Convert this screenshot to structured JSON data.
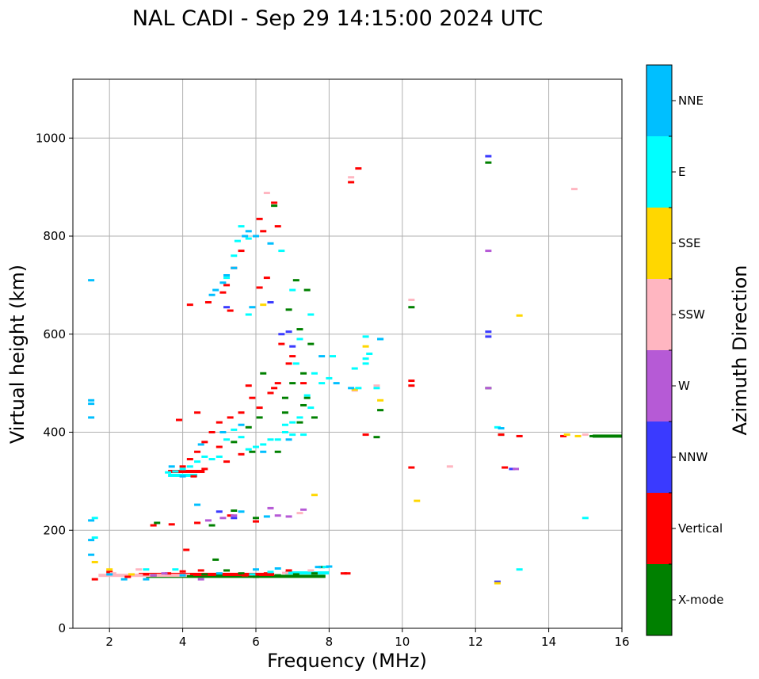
{
  "chart_data": {
    "type": "scatter",
    "title": "NAL CADI - Sep 29 14:15:00 2024 UTC",
    "xlabel": "Frequency (MHz)",
    "ylabel": "Virtual height (km)",
    "xlim": [
      1,
      16
    ],
    "ylim": [
      0,
      1120
    ],
    "xticks": [
      2,
      4,
      6,
      8,
      10,
      12,
      14,
      16
    ],
    "yticks": [
      0,
      200,
      400,
      600,
      800,
      1000
    ],
    "grid": true,
    "colorbar": {
      "label": "Azimuth Direction",
      "categories": [
        {
          "name": "X-mode",
          "color": "#008000"
        },
        {
          "name": "Vertical",
          "color": "#ff0000"
        },
        {
          "name": "NNW",
          "color": "#3a3aff"
        },
        {
          "name": "W",
          "color": "#b65ad6"
        },
        {
          "name": "SSW",
          "color": "#ffb6c1"
        },
        {
          "name": "SSE",
          "color": "#ffd700"
        },
        {
          "name": "E",
          "color": "#00ffff"
        },
        {
          "name": "NNE",
          "color": "#00bfff"
        }
      ]
    },
    "series": [
      {
        "name": "X-mode",
        "points": [
          [
            6.5,
            862
          ],
          [
            7.1,
            710
          ],
          [
            7.4,
            690
          ],
          [
            6.9,
            650
          ],
          [
            7.2,
            610
          ],
          [
            7.5,
            580
          ],
          [
            7.3,
            520
          ],
          [
            7.0,
            500
          ],
          [
            7.4,
            470
          ],
          [
            6.8,
            440
          ],
          [
            7.2,
            420
          ],
          [
            6.1,
            430
          ],
          [
            5.8,
            410
          ],
          [
            5.4,
            380
          ],
          [
            5.9,
            360
          ],
          [
            6.2,
            520
          ],
          [
            6.8,
            470
          ],
          [
            7.3,
            455
          ],
          [
            7.6,
            430
          ],
          [
            6.6,
            360
          ],
          [
            4.8,
            210
          ],
          [
            5.4,
            240
          ],
          [
            6.0,
            225
          ],
          [
            3.3,
            215
          ],
          [
            4.6,
            110
          ],
          [
            5.0,
            108
          ],
          [
            5.6,
            112
          ],
          [
            6.0,
            105
          ],
          [
            6.6,
            108
          ],
          [
            7.1,
            110
          ],
          [
            7.6,
            112
          ],
          [
            3.2,
            108
          ],
          [
            4.2,
            106
          ],
          [
            5.2,
            118
          ],
          [
            12.35,
            950
          ],
          [
            12.35,
            490
          ],
          [
            10.25,
            655
          ],
          [
            9.3,
            390
          ],
          [
            9.4,
            445
          ],
          [
            15.2,
            392
          ],
          [
            15.7,
            392
          ],
          [
            12.7,
            395
          ],
          [
            7.8,
            125
          ],
          [
            4.9,
            140
          ]
        ]
      },
      {
        "name": "Vertical",
        "points": [
          [
            6.5,
            868
          ],
          [
            6.6,
            820
          ],
          [
            6.1,
            835
          ],
          [
            6.2,
            810
          ],
          [
            5.6,
            770
          ],
          [
            5.4,
            735
          ],
          [
            5.2,
            700
          ],
          [
            5.1,
            685
          ],
          [
            5.3,
            648
          ],
          [
            6.3,
            715
          ],
          [
            6.1,
            695
          ],
          [
            6.7,
            580
          ],
          [
            6.9,
            540
          ],
          [
            6.6,
            500
          ],
          [
            6.4,
            480
          ],
          [
            5.8,
            495
          ],
          [
            5.9,
            470
          ],
          [
            6.1,
            450
          ],
          [
            5.6,
            440
          ],
          [
            5.3,
            430
          ],
          [
            5.0,
            420
          ],
          [
            4.8,
            400
          ],
          [
            4.6,
            380
          ],
          [
            4.4,
            360
          ],
          [
            4.2,
            345
          ],
          [
            4.0,
            330
          ],
          [
            3.8,
            320
          ],
          [
            4.3,
            310
          ],
          [
            4.6,
            325
          ],
          [
            5.2,
            340
          ],
          [
            5.6,
            355
          ],
          [
            5.0,
            370
          ],
          [
            4.4,
            440
          ],
          [
            3.9,
            425
          ],
          [
            4.7,
            665
          ],
          [
            4.2,
            660
          ],
          [
            7.0,
            555
          ],
          [
            6.5,
            490
          ],
          [
            7.3,
            500
          ],
          [
            8.6,
            910
          ],
          [
            8.8,
            938
          ],
          [
            9.0,
            395
          ],
          [
            10.25,
            505
          ],
          [
            10.25,
            495
          ],
          [
            10.25,
            328
          ],
          [
            12.7,
            395
          ],
          [
            12.8,
            328
          ],
          [
            13.2,
            392
          ],
          [
            14.4,
            392
          ],
          [
            8.4,
            112
          ],
          [
            8.5,
            112
          ],
          [
            5.7,
            108
          ],
          [
            6.3,
            112
          ],
          [
            6.9,
            118
          ],
          [
            3.0,
            110
          ],
          [
            3.6,
            112
          ],
          [
            4.0,
            116
          ],
          [
            4.5,
            118
          ],
          [
            5.2,
            110
          ],
          [
            2.5,
            105
          ],
          [
            2.0,
            115
          ],
          [
            1.6,
            100
          ],
          [
            3.2,
            210
          ],
          [
            3.7,
            212
          ],
          [
            4.4,
            215
          ],
          [
            5.3,
            230
          ],
          [
            6.0,
            218
          ],
          [
            4.1,
            160
          ]
        ]
      },
      {
        "name": "NNW",
        "points": [
          [
            12.35,
            963
          ],
          [
            12.35,
            605
          ],
          [
            12.35,
            595
          ],
          [
            13.0,
            325
          ],
          [
            12.6,
            95
          ],
          [
            6.9,
            605
          ],
          [
            7.0,
            575
          ],
          [
            6.7,
            600
          ],
          [
            5.2,
            655
          ],
          [
            6.4,
            665
          ],
          [
            5.4,
            225
          ],
          [
            5.0,
            238
          ]
        ]
      },
      {
        "name": "W",
        "points": [
          [
            12.35,
            770
          ],
          [
            12.35,
            490
          ],
          [
            13.1,
            325
          ],
          [
            6.4,
            245
          ],
          [
            6.6,
            230
          ],
          [
            6.9,
            228
          ],
          [
            7.3,
            242
          ],
          [
            5.1,
            225
          ],
          [
            5.4,
            230
          ],
          [
            4.7,
            220
          ],
          [
            3.2,
            108
          ],
          [
            3.5,
            112
          ],
          [
            4.5,
            100
          ]
        ]
      },
      {
        "name": "SSW",
        "points": [
          [
            8.6,
            920
          ],
          [
            6.3,
            888
          ],
          [
            10.25,
            670
          ],
          [
            14.7,
            896
          ],
          [
            11.3,
            330
          ],
          [
            15.0,
            395
          ],
          [
            9.3,
            495
          ],
          [
            8.7,
            485
          ],
          [
            6.8,
            113
          ],
          [
            7.5,
            118
          ],
          [
            2.1,
            112
          ],
          [
            2.8,
            120
          ],
          [
            7.2,
            235
          ]
        ]
      },
      {
        "name": "SSE",
        "points": [
          [
            13.2,
            638
          ],
          [
            10.4,
            260
          ],
          [
            9.0,
            575
          ],
          [
            9.4,
            465
          ],
          [
            8.7,
            487
          ],
          [
            14.5,
            395
          ],
          [
            14.8,
            392
          ],
          [
            7.6,
            272
          ],
          [
            12.6,
            92
          ],
          [
            6.2,
            660
          ],
          [
            1.6,
            135
          ],
          [
            2.0,
            120
          ],
          [
            2.6,
            110
          ]
        ]
      },
      {
        "name": "E",
        "points": [
          [
            5.5,
            790
          ],
          [
            5.6,
            820
          ],
          [
            5.8,
            795
          ],
          [
            5.2,
            715
          ],
          [
            5.4,
            760
          ],
          [
            5.8,
            640
          ],
          [
            6.7,
            770
          ],
          [
            7.0,
            690
          ],
          [
            7.5,
            640
          ],
          [
            7.2,
            590
          ],
          [
            7.1,
            540
          ],
          [
            7.6,
            520
          ],
          [
            7.8,
            500
          ],
          [
            8.0,
            510
          ],
          [
            8.1,
            555
          ],
          [
            7.4,
            475
          ],
          [
            7.5,
            450
          ],
          [
            7.2,
            430
          ],
          [
            7.0,
            420
          ],
          [
            6.8,
            400
          ],
          [
            6.6,
            385
          ],
          [
            6.4,
            385
          ],
          [
            6.2,
            375
          ],
          [
            6.0,
            370
          ],
          [
            5.8,
            365
          ],
          [
            5.6,
            390
          ],
          [
            5.4,
            405
          ],
          [
            5.2,
            385
          ],
          [
            5.0,
            350
          ],
          [
            4.8,
            345
          ],
          [
            4.6,
            350
          ],
          [
            4.4,
            340
          ],
          [
            4.2,
            330
          ],
          [
            4.0,
            325
          ],
          [
            3.8,
            320
          ],
          [
            3.6,
            318
          ],
          [
            7.3,
            395
          ],
          [
            7.0,
            395
          ],
          [
            6.8,
            415
          ],
          [
            8.7,
            530
          ],
          [
            9.0,
            595
          ],
          [
            9.1,
            560
          ],
          [
            9.4,
            590
          ],
          [
            9.3,
            490
          ],
          [
            8.8,
            490
          ],
          [
            9.0,
            550
          ],
          [
            9.0,
            540
          ],
          [
            12.6,
            410
          ],
          [
            15.0,
            225
          ],
          [
            13.2,
            120
          ],
          [
            7.9,
            125
          ],
          [
            6.4,
            115
          ],
          [
            5.9,
            110
          ],
          [
            1.6,
            225
          ],
          [
            1.6,
            185
          ],
          [
            3.0,
            120
          ],
          [
            3.8,
            120
          ]
        ]
      },
      {
        "name": "NNE",
        "points": [
          [
            1.5,
            710
          ],
          [
            1.5,
            465
          ],
          [
            1.5,
            458
          ],
          [
            1.5,
            430
          ],
          [
            1.5,
            220
          ],
          [
            1.5,
            180
          ],
          [
            1.5,
            150
          ],
          [
            2.4,
            100
          ],
          [
            2.0,
            110
          ],
          [
            3.0,
            100
          ],
          [
            4.0,
            108
          ],
          [
            5.0,
            112
          ],
          [
            6.0,
            120
          ],
          [
            6.6,
            122
          ],
          [
            7.7,
            125
          ],
          [
            8.0,
            126
          ],
          [
            5.9,
            655
          ],
          [
            5.4,
            735
          ],
          [
            5.2,
            720
          ],
          [
            4.9,
            690
          ],
          [
            5.1,
            705
          ],
          [
            4.8,
            680
          ],
          [
            5.8,
            810
          ],
          [
            5.7,
            800
          ],
          [
            6.0,
            800
          ],
          [
            6.4,
            785
          ],
          [
            4.5,
            375
          ],
          [
            5.1,
            400
          ],
          [
            5.6,
            415
          ],
          [
            6.2,
            360
          ],
          [
            6.9,
            385
          ],
          [
            3.7,
            330
          ],
          [
            4.0,
            310
          ],
          [
            9.4,
            590
          ],
          [
            12.7,
            408
          ],
          [
            4.4,
            252
          ],
          [
            5.6,
            238
          ],
          [
            6.3,
            228
          ],
          [
            7.8,
            555
          ],
          [
            8.2,
            500
          ],
          [
            8.6,
            490
          ]
        ]
      }
    ],
    "bands": [
      {
        "series": "X-mode",
        "x": [
          3.0,
          7.9
        ],
        "y": 106
      },
      {
        "series": "Vertical",
        "x": [
          2.8,
          6.5
        ],
        "y": 110
      },
      {
        "series": "SSW",
        "x": [
          1.7,
          4.2
        ],
        "y": 108
      },
      {
        "series": "E",
        "x": [
          6.8,
          8.0
        ],
        "y": 113
      },
      {
        "series": "X-mode",
        "x": [
          15.2,
          16.0
        ],
        "y": 392
      },
      {
        "series": "Vertical",
        "x": [
          3.6,
          4.6
        ],
        "y": 320
      },
      {
        "series": "E",
        "x": [
          3.6,
          4.4
        ],
        "y": 312
      }
    ]
  }
}
